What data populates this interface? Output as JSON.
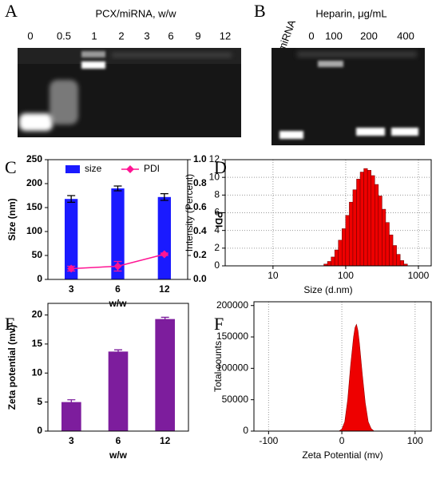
{
  "gels": [
    {
      "panel": "A",
      "title": "PCX/miRNA, w/w",
      "lanes": [
        "0",
        "0.5",
        "1",
        "2",
        "3",
        "6",
        "9",
        "12"
      ]
    },
    {
      "panel": "B",
      "lane_header": "miRNA",
      "title": "Heparin, μg/mL",
      "lanes": [
        "0",
        "100",
        "200",
        "400"
      ]
    }
  ],
  "chart_data": [
    {
      "type": "bar-line",
      "panel": "C",
      "categories": [
        "3",
        "6",
        "12"
      ],
      "series": [
        {
          "name": "size",
          "color": "#1a1aff",
          "values": [
            168,
            190,
            172
          ],
          "errors": [
            7,
            5,
            7
          ]
        },
        {
          "name": "PDI",
          "color": "#ff1493",
          "values": [
            0.09,
            0.11,
            0.21
          ],
          "errors": [
            0.02,
            0.04,
            0.01
          ],
          "axis": "y2"
        }
      ],
      "ylim": [
        0,
        250
      ],
      "yticks": [
        0,
        50,
        100,
        150,
        200,
        250
      ],
      "y2lim": [
        0,
        1
      ],
      "y2ticks": [
        {
          "value": 0,
          "label": "0.0"
        },
        0.2,
        0.4,
        0.6,
        0.8,
        {
          "value": 1,
          "label": "1.0"
        }
      ],
      "ylabel": "Size (nm)",
      "y2label": "PDI",
      "xlabel": "w/w",
      "legend": "top"
    },
    {
      "type": "histogram",
      "panel": "D",
      "color": "#ee0000",
      "bins": [
        50,
        56.1,
        63,
        70.6,
        79.2,
        88.9,
        99.8,
        112,
        125.6,
        141,
        158.2,
        177.5,
        199.2,
        223.5,
        250.8,
        281.4,
        315.8,
        354.4,
        397.7,
        446.2,
        500.7,
        561.8,
        630.4,
        707.4
      ],
      "values": [
        0.2,
        0.5,
        1.0,
        1.8,
        2.9,
        4.2,
        5.7,
        7.2,
        8.6,
        9.8,
        10.6,
        11.0,
        10.8,
        10.2,
        9.2,
        7.9,
        6.4,
        4.9,
        3.5,
        2.3,
        1.3,
        0.6,
        0.2
      ],
      "xlim": [
        2.2,
        1500
      ],
      "xticks": [
        10,
        100,
        1000
      ],
      "xlog": true,
      "ylim": [
        0,
        12
      ],
      "yticks": [
        0,
        2,
        4,
        6,
        8,
        10,
        12
      ],
      "grid": true,
      "ylabel": "Intensity (Percent)",
      "xlabel": "Size (d.nm)"
    },
    {
      "type": "bar",
      "panel": "E",
      "categories": [
        "3",
        "6",
        "12"
      ],
      "color": "#7d1d9d",
      "values": [
        5.0,
        13.7,
        19.3
      ],
      "errors": [
        0.4,
        0.3,
        0.3
      ],
      "ylim": [
        0,
        22
      ],
      "yticks": [
        0,
        5,
        10,
        15,
        20
      ],
      "ylabel": "Zeta potential (mv)",
      "xlabel": "w/w"
    },
    {
      "type": "area",
      "panel": "F",
      "color": "#ee0000",
      "x": [
        -4,
        0,
        4,
        8,
        12,
        16,
        18,
        20,
        22,
        24,
        28,
        32,
        36,
        40,
        44
      ],
      "values": [
        0,
        3000,
        15000,
        50000,
        105000,
        150000,
        165000,
        170000,
        160000,
        140000,
        90000,
        45000,
        15000,
        4000,
        0
      ],
      "xlim": [
        -120,
        122
      ],
      "xticks": [
        -100,
        0,
        100
      ],
      "xgrid": true,
      "ylim": [
        0,
        206000
      ],
      "yticks": [
        0,
        50000,
        100000,
        150000,
        200000
      ],
      "ylabel": "Total counts",
      "xlabel": "Zeta Potential (mv)"
    }
  ]
}
